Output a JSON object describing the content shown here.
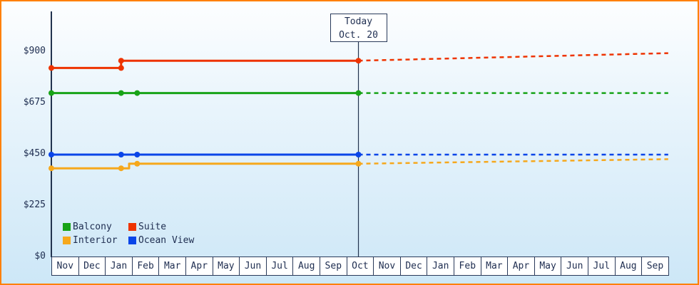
{
  "chart_data": {
    "type": "line",
    "y_axis": {
      "unit": "$",
      "range": [
        0,
        1080
      ],
      "ticks": [
        {
          "label": "$900",
          "value": 900
        },
        {
          "label": "$675",
          "value": 675
        },
        {
          "label": "$450",
          "value": 450
        },
        {
          "label": "$225",
          "value": 225
        },
        {
          "label": "$0",
          "value": 0
        }
      ]
    },
    "x_axis": {
      "months": [
        "Nov",
        "Dec",
        "Jan",
        "Feb",
        "Mar",
        "Apr",
        "May",
        "Jun",
        "Jul",
        "Aug",
        "Sep",
        "Oct",
        "Nov",
        "Dec",
        "Jan",
        "Feb",
        "Mar",
        "Apr",
        "May",
        "Jun",
        "Jul",
        "Aug",
        "Sep"
      ]
    },
    "today": {
      "label_line1": "Today",
      "label_line2": "Oct. 20",
      "month_pos": 11.45
    },
    "series": [
      {
        "name": "Suite",
        "color": "#ee3300",
        "history": [
          [
            0,
            830
          ],
          [
            2.6,
            830
          ],
          [
            2.6,
            862
          ],
          [
            11.45,
            862
          ]
        ],
        "forecast": [
          [
            11.45,
            862
          ],
          [
            23,
            895
          ]
        ],
        "markers": [
          [
            0,
            830
          ],
          [
            2.6,
            830
          ],
          [
            2.6,
            862
          ],
          [
            11.45,
            862
          ]
        ]
      },
      {
        "name": "Balcony",
        "color": "#17a317",
        "history": [
          [
            0,
            720
          ],
          [
            11.45,
            720
          ]
        ],
        "forecast": [
          [
            11.45,
            720
          ],
          [
            23,
            720
          ]
        ],
        "markers": [
          [
            0,
            720
          ],
          [
            2.6,
            720
          ],
          [
            3.2,
            720
          ],
          [
            11.45,
            720
          ]
        ]
      },
      {
        "name": "Ocean View",
        "color": "#0a45e8",
        "history": [
          [
            0,
            450
          ],
          [
            11.45,
            450
          ]
        ],
        "forecast": [
          [
            11.45,
            450
          ],
          [
            23,
            450
          ]
        ],
        "markers": [
          [
            0,
            450
          ],
          [
            2.6,
            450
          ],
          [
            3.2,
            450
          ],
          [
            11.45,
            450
          ]
        ]
      },
      {
        "name": "Interior",
        "color": "#f6a81c",
        "history": [
          [
            0,
            390
          ],
          [
            2.9,
            390
          ],
          [
            2.9,
            410
          ],
          [
            11.45,
            410
          ]
        ],
        "forecast": [
          [
            11.45,
            410
          ],
          [
            23,
            430
          ]
        ],
        "markers": [
          [
            0,
            390
          ],
          [
            2.6,
            390
          ],
          [
            3.2,
            410
          ],
          [
            11.45,
            410
          ]
        ]
      }
    ],
    "legend": [
      {
        "label": "Balcony"
      },
      {
        "label": "Suite"
      },
      {
        "label": "Interior"
      },
      {
        "label": "Ocean View"
      }
    ]
  }
}
